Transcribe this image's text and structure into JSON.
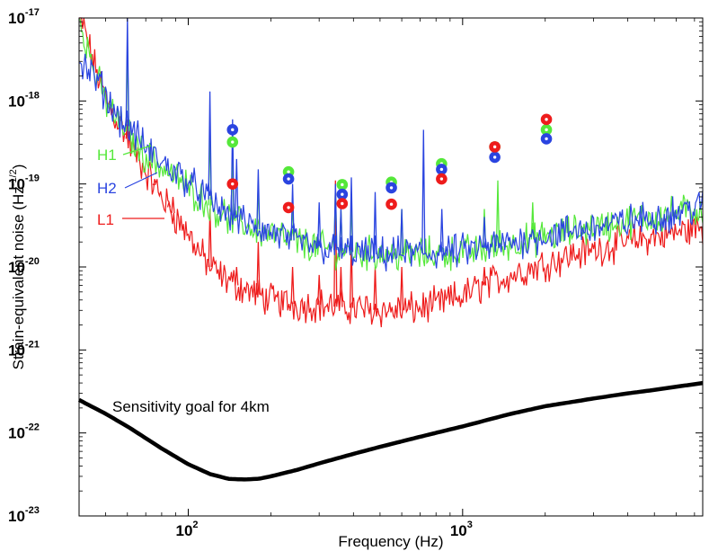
{
  "chart_data": {
    "type": "line",
    "title": "",
    "xlabel": "Frequency (Hz)",
    "ylabel": "Strain-equivalent noise (Hz",
    "ylabel_exponent": "-1/2",
    "ylabel_suffix": ")",
    "x_scale": "log",
    "y_scale": "log",
    "xlim": [
      40,
      7500
    ],
    "ylim": [
      1e-23,
      1e-17
    ],
    "x_ticks": [
      {
        "value": 100,
        "base": "10",
        "exp": "2"
      },
      {
        "value": 1000,
        "base": "10",
        "exp": "3"
      }
    ],
    "y_ticks": [
      {
        "value": 1e-17,
        "base": "10",
        "exp": "-17"
      },
      {
        "value": 1e-18,
        "base": "10",
        "exp": "-18"
      },
      {
        "value": 1e-19,
        "base": "10",
        "exp": "-19"
      },
      {
        "value": 1e-20,
        "base": "10",
        "exp": "-20"
      },
      {
        "value": 1e-21,
        "base": "10",
        "exp": "-21"
      },
      {
        "value": 1e-22,
        "base": "10",
        "exp": "-22"
      },
      {
        "value": 1e-23,
        "base": "10",
        "exp": "-23"
      }
    ],
    "grid": false,
    "colors": {
      "H1": "#55e83a",
      "H2": "#2a44e0",
      "L1": "#ee1c1c",
      "goal": "#000000"
    },
    "series": [
      {
        "name": "H1",
        "x": [
          40,
          42,
          45,
          48,
          50,
          52,
          55,
          58,
          60,
          62,
          65,
          70,
          80,
          90,
          100,
          110,
          120,
          130,
          150,
          170,
          200,
          250,
          300,
          400,
          500,
          600,
          700,
          800,
          1000,
          1200,
          1500,
          2000,
          3000,
          4000,
          5000,
          6000,
          7500
        ],
        "y": [
          1e-17,
          6e-18,
          2.5e-18,
          1.4e-18,
          1e-18,
          8e-19,
          6e-19,
          5e-19,
          4.3e-19,
          3.5e-19,
          2.8e-19,
          2.2e-19,
          1.6e-19,
          1.2e-19,
          9e-20,
          7e-20,
          5.5e-20,
          4.5e-20,
          3.5e-20,
          3e-20,
          2.5e-20,
          2e-20,
          1.7e-20,
          1.5e-20,
          1.45e-20,
          1.4e-20,
          1.4e-20,
          1.45e-20,
          1.5e-20,
          1.65e-20,
          1.9e-20,
          2.3e-20,
          3e-20,
          3.5e-20,
          4e-20,
          4.5e-20,
          5e-20
        ],
        "peaks_x": [
          60,
          119.9,
          145,
          180,
          240,
          344,
          360,
          393,
          600,
          1200,
          1344,
          1800
        ],
        "peaks_y": [
          5e-18,
          5e-19,
          2e-19,
          1e-19,
          6e-20,
          9e-20,
          5e-20,
          6e-20,
          5e-20,
          5e-20,
          1.1e-19,
          6e-20
        ]
      },
      {
        "name": "H2",
        "x": [
          40,
          42,
          45,
          48,
          50,
          52,
          55,
          58,
          62,
          66,
          70,
          80,
          90,
          100,
          110,
          120,
          130,
          150,
          170,
          200,
          250,
          300,
          400,
          500,
          600,
          700,
          800,
          1000,
          1200,
          1500,
          2000,
          3000,
          4000,
          5000,
          6000,
          7500
        ],
        "y": [
          3e-18,
          2.5e-18,
          2e-18,
          1.5e-18,
          1.2e-18,
          9e-19,
          7e-19,
          5.5e-19,
          4.5e-19,
          3.5e-19,
          2.7e-19,
          1.8e-19,
          1.4e-19,
          1.1e-19,
          8e-20,
          6.5e-20,
          5e-20,
          4e-20,
          3e-20,
          2.6e-20,
          2e-20,
          1.7e-20,
          1.5e-20,
          1.4e-20,
          1.45e-20,
          1.45e-20,
          1.5e-20,
          1.55e-20,
          1.7e-20,
          1.95e-20,
          2.4e-20,
          3e-20,
          3.5e-20,
          4e-20,
          4.5e-20,
          5.5e-20
        ],
        "peaks_x": [
          60,
          119.9,
          145,
          150,
          180,
          240,
          300,
          344,
          360,
          393,
          480,
          600,
          720,
          840,
          1200
        ],
        "peaks_y": [
          1e-17,
          1.3e-18,
          6e-19,
          2e-19,
          1.5e-19,
          1e-19,
          6e-20,
          1e-19,
          5e-20,
          1.2e-19,
          8e-20,
          5e-20,
          4.5e-19,
          5e-20,
          4e-20
        ]
      },
      {
        "name": "L1",
        "x": [
          40,
          42,
          45,
          48,
          50,
          52,
          55,
          58,
          60,
          62,
          65,
          70,
          80,
          90,
          100,
          110,
          120,
          130,
          150,
          170,
          200,
          250,
          300,
          350,
          400,
          500,
          600,
          700,
          800,
          1000,
          1200,
          1500,
          2000,
          2500,
          3000,
          4000,
          5000,
          6000,
          7500
        ],
        "y": [
          1e-17,
          7e-18,
          3e-18,
          1.6e-18,
          1.1e-18,
          8e-19,
          6e-19,
          4.5e-19,
          3.5e-19,
          2.8e-19,
          2.2e-19,
          1.4e-19,
          7e-20,
          4e-20,
          2.5e-20,
          1.5e-20,
          1e-20,
          8e-21,
          6e-21,
          5e-21,
          4e-21,
          3.5e-21,
          3.5e-21,
          3.3e-21,
          3.2e-21,
          3e-21,
          3e-21,
          3.2e-21,
          3.5e-21,
          4.5e-21,
          6e-21,
          8e-21,
          1.1e-20,
          1.4e-20,
          1.6e-20,
          2e-20,
          2.3e-20,
          2.6e-20,
          3e-20
        ],
        "peaks_x": [
          60,
          75,
          85,
          88,
          120,
          150,
          180,
          240,
          300,
          344,
          360,
          393,
          480,
          600,
          1200
        ],
        "peaks_y": [
          6e-19,
          1e-19,
          6e-20,
          7e-20,
          5e-20,
          1e-20,
          2e-20,
          1e-20,
          8e-21,
          1.1e-19,
          1e-20,
          2e-20,
          1e-20,
          1e-20,
          1e-20
        ]
      },
      {
        "name": "Sensitivity goal for 4km",
        "x": [
          40,
          50,
          60,
          80,
          100,
          120,
          140,
          160,
          180,
          200,
          250,
          300,
          400,
          500,
          700,
          1000,
          1500,
          2000,
          3000,
          4000,
          5000,
          6000,
          7500
        ],
        "y": [
          2.5e-22,
          1.7e-22,
          1.2e-22,
          6.5e-23,
          4.2e-23,
          3.2e-23,
          2.8e-23,
          2.75e-23,
          2.8e-23,
          3e-23,
          3.6e-23,
          4.3e-23,
          5.6e-23,
          6.8e-23,
          9e-23,
          1.2e-22,
          1.7e-22,
          2.1e-22,
          2.6e-22,
          3e-22,
          3.3e-22,
          3.6e-22,
          4e-22
        ]
      }
    ],
    "markers": [
      {
        "x": 145,
        "H1": 3.2e-19,
        "H2": 4.5e-19,
        "L1": 1e-19
      },
      {
        "x": 232,
        "H1": 1.4e-19,
        "H2": 1.15e-19,
        "L1": 5.2e-20
      },
      {
        "x": 364,
        "H1": 9.8e-20,
        "H2": 7.5e-20,
        "L1": 5.8e-20
      },
      {
        "x": 550,
        "H1": 1.05e-19,
        "H2": 9e-20,
        "L1": 5.7e-20
      },
      {
        "x": 838,
        "H1": 1.75e-19,
        "H2": 1.5e-19,
        "L1": 1.15e-19
      },
      {
        "x": 1310,
        "H1": 2.8e-19,
        "H2": 2.1e-19,
        "L1": 2.8e-19
      },
      {
        "x": 2020,
        "H1": 4.5e-19,
        "H2": 3.5e-19,
        "L1": 6e-19
      }
    ],
    "legend": [
      {
        "label": "H1",
        "series": "H1"
      },
      {
        "label": "H2",
        "series": "H2"
      },
      {
        "label": "L1",
        "series": "L1"
      }
    ],
    "annotation": "Sensitivity goal for 4km"
  }
}
